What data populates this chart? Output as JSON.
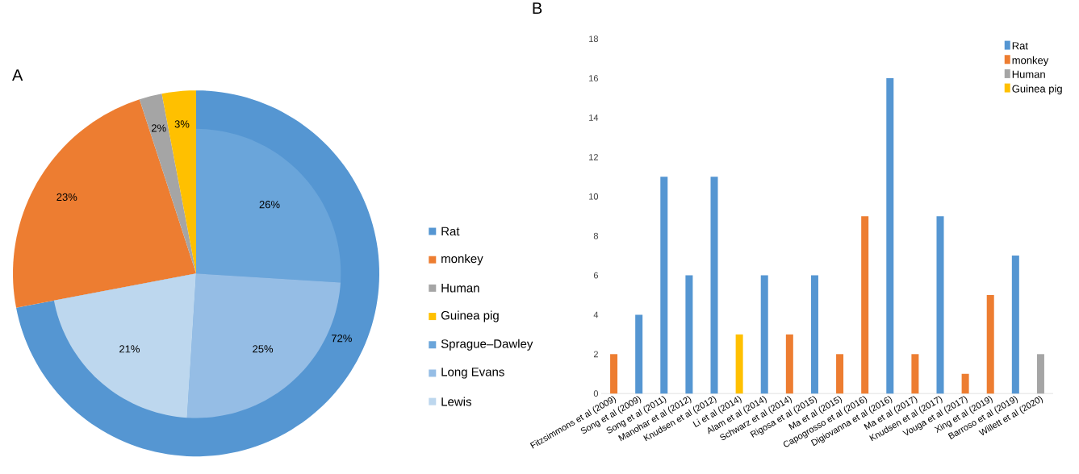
{
  "chart_data": [
    {
      "type": "pie",
      "title": "A",
      "categories": [
        "Rat",
        "monkey",
        "Human",
        "Guinea pig"
      ],
      "values": [
        72,
        23,
        2,
        3
      ],
      "value_labels": [
        "72%",
        "23%",
        "2%",
        "3%"
      ],
      "colors": [
        "#5596d2",
        "#ed7d31",
        "#a5a5a5",
        "#ffc000"
      ],
      "legend": "right"
    },
    {
      "type": "pie",
      "categories": [
        "Sprague–Dawley",
        "Long Evans",
        "Lewis"
      ],
      "values": [
        26,
        25,
        21
      ],
      "value_labels": [
        "26%",
        "25%",
        "21%"
      ],
      "colors": [
        "#6aa5da",
        "#95bde5",
        "#bdd7ee"
      ],
      "legend": "right"
    },
    {
      "type": "bar",
      "title": "B",
      "legend": "top right",
      "categories": [
        "Fitzsimmons et al (2009)",
        "Song et al (2009)",
        "Song et al (2011)",
        "Manohar et al (2012)",
        "Knudsen et al (2012)",
        "Li et al (2014)",
        "Alam et al (2014)",
        "Schwarz et al (2014)",
        "Rigosa et al (2015)",
        "Ma et al (2015)",
        "Capogrosso et al (2016)",
        "Digiovanna et al (2016)",
        "Ma et al (2017)",
        "Knudsen et al (2017)",
        "Vouga et al (2017)",
        "Xing et al (2019)",
        "Barroso et al (2019)",
        "Willett et al (2020)"
      ],
      "ylim": [
        0,
        18
      ],
      "yticks": [
        0,
        2,
        4,
        6,
        8,
        10,
        12,
        14,
        16,
        18
      ],
      "series": [
        {
          "name": "Rat",
          "color": "#5596d2",
          "values": [
            null,
            4,
            11,
            6,
            11,
            null,
            6,
            null,
            6,
            null,
            null,
            16,
            null,
            9,
            null,
            null,
            7,
            null
          ]
        },
        {
          "name": "monkey",
          "color": "#ed7d31",
          "values": [
            2,
            null,
            null,
            null,
            null,
            null,
            null,
            3,
            null,
            2,
            9,
            null,
            2,
            null,
            1,
            5,
            null,
            null
          ]
        },
        {
          "name": "Human",
          "color": "#a5a5a5",
          "values": [
            null,
            null,
            null,
            null,
            null,
            null,
            null,
            null,
            null,
            null,
            null,
            null,
            null,
            null,
            null,
            null,
            null,
            2
          ]
        },
        {
          "name": "Guinea pig",
          "color": "#ffc000",
          "values": [
            null,
            null,
            null,
            null,
            null,
            3,
            null,
            null,
            null,
            null,
            null,
            null,
            null,
            null,
            null,
            null,
            null,
            null
          ]
        }
      ]
    }
  ]
}
